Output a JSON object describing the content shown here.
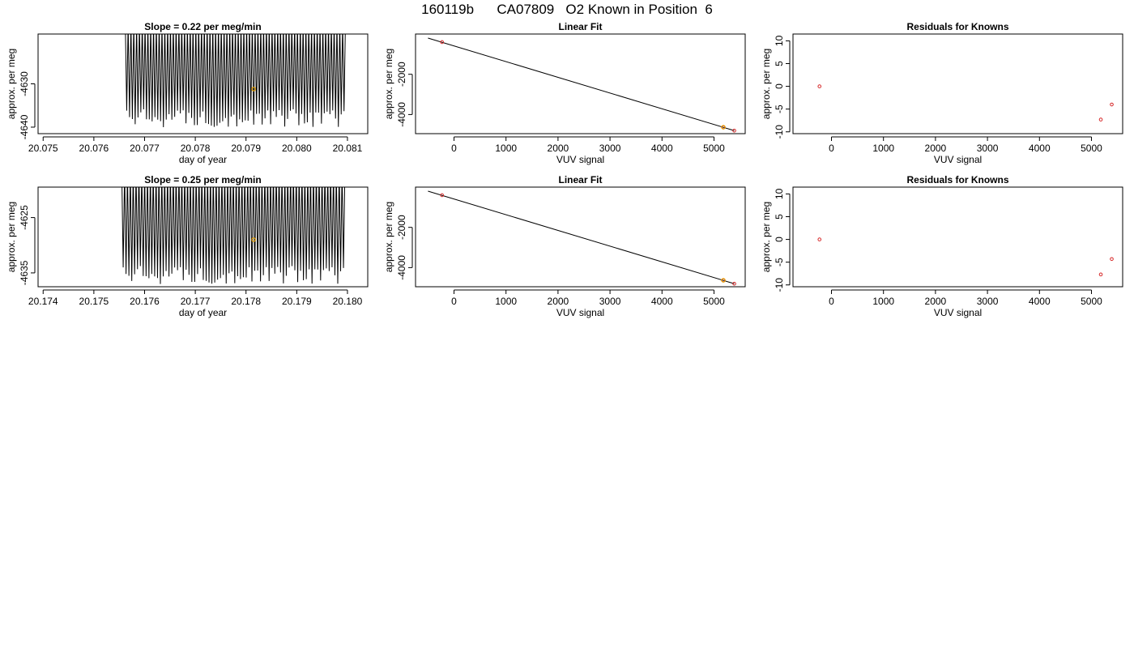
{
  "title": "160119b      CA07809   O2 Known in Position  6",
  "colors": {
    "line": "#000000",
    "marker_orange": "#e69f00",
    "marker_red": "#d62728"
  },
  "chart_data": [
    {
      "type": "line",
      "title": "Slope =  0.22  per meg/min",
      "xlabel": "day of year",
      "ylabel": "approx. per meg",
      "xlim": [
        20.0749,
        20.0814
      ],
      "ylim": [
        -4641.5,
        -4618.5
      ],
      "xticks": [
        "20.075",
        "20.076",
        "20.077",
        "20.078",
        "20.079",
        "20.080",
        "20.081"
      ],
      "yticks": [
        -4640,
        -4630
      ],
      "series": [
        {
          "x_start": 20.07662,
          "x_end": 20.08096,
          "oscillation_hi": -4619,
          "oscillation_lo": -4640,
          "cycles": 78
        }
      ],
      "highlight": {
        "x": 20.07915,
        "y": -4631.2
      }
    },
    {
      "type": "scatter",
      "title": "Linear Fit",
      "xlabel": "VUV signal",
      "ylabel": "approx. per meg",
      "xlim": [
        -740,
        5600
      ],
      "ylim": [
        -4950,
        0
      ],
      "xticks": [
        0,
        1000,
        2000,
        3000,
        4000,
        5000
      ],
      "yticks": [
        -4000,
        -2000
      ],
      "points": [
        {
          "x": -230,
          "y": -400
        },
        {
          "x": 5180,
          "y": -4630
        },
        {
          "x": 5390,
          "y": -4800
        }
      ],
      "fit_line": {
        "x": [
          -500,
          5390
        ],
        "y": [
          -200,
          -4800
        ]
      },
      "highlight": {
        "x": 5180,
        "y": -4630
      }
    },
    {
      "type": "scatter",
      "title": "Residuals for Knowns",
      "xlabel": "VUV signal",
      "ylabel": "approx. per meg",
      "xlim": [
        -740,
        5600
      ],
      "ylim": [
        -10.4,
        11.5
      ],
      "xticks": [
        0,
        1000,
        2000,
        3000,
        4000,
        5000
      ],
      "yticks": [
        -10,
        -5,
        0,
        5,
        10
      ],
      "points": [
        {
          "x": -230,
          "y": 0
        },
        {
          "x": 5180,
          "y": -7.3
        },
        {
          "x": 5390,
          "y": -4
        }
      ]
    },
    {
      "type": "line",
      "title": "Slope =  0.25  per meg/min",
      "xlabel": "day of year",
      "ylabel": "approx. per meg",
      "xlim": [
        20.1739,
        20.1804
      ],
      "ylim": [
        -4637.5,
        -4619.5
      ],
      "xticks": [
        "20.174",
        "20.175",
        "20.176",
        "20.177",
        "20.178",
        "20.179",
        "20.180"
      ],
      "yticks": [
        -4635,
        -4625
      ],
      "series": [
        {
          "x_start": 20.17555,
          "x_end": 20.17995,
          "oscillation_hi": -4619.5,
          "oscillation_lo": -4637,
          "cycles": 78
        }
      ],
      "highlight": {
        "x": 20.17815,
        "y": -4629
      }
    },
    {
      "type": "scatter",
      "title": "Linear Fit",
      "xlabel": "VUV signal",
      "ylabel": "approx. per meg",
      "xlim": [
        -740,
        5600
      ],
      "ylim": [
        -4950,
        0
      ],
      "xticks": [
        0,
        1000,
        2000,
        3000,
        4000,
        5000
      ],
      "yticks": [
        -4000,
        -2000
      ],
      "points": [
        {
          "x": -230,
          "y": -400
        },
        {
          "x": 5180,
          "y": -4630
        },
        {
          "x": 5390,
          "y": -4800
        }
      ],
      "fit_line": {
        "x": [
          -500,
          5390
        ],
        "y": [
          -200,
          -4800
        ]
      },
      "highlight": {
        "x": 5180,
        "y": -4630
      }
    },
    {
      "type": "scatter",
      "title": "Residuals for Knowns",
      "xlabel": "VUV signal",
      "ylabel": "approx. per meg",
      "xlim": [
        -740,
        5600
      ],
      "ylim": [
        -10.4,
        11.5
      ],
      "xticks": [
        0,
        1000,
        2000,
        3000,
        4000,
        5000
      ],
      "yticks": [
        -10,
        -5,
        0,
        5,
        10
      ],
      "points": [
        {
          "x": -230,
          "y": 0
        },
        {
          "x": 5180,
          "y": -7.7
        },
        {
          "x": 5390,
          "y": -4.3
        }
      ]
    }
  ]
}
